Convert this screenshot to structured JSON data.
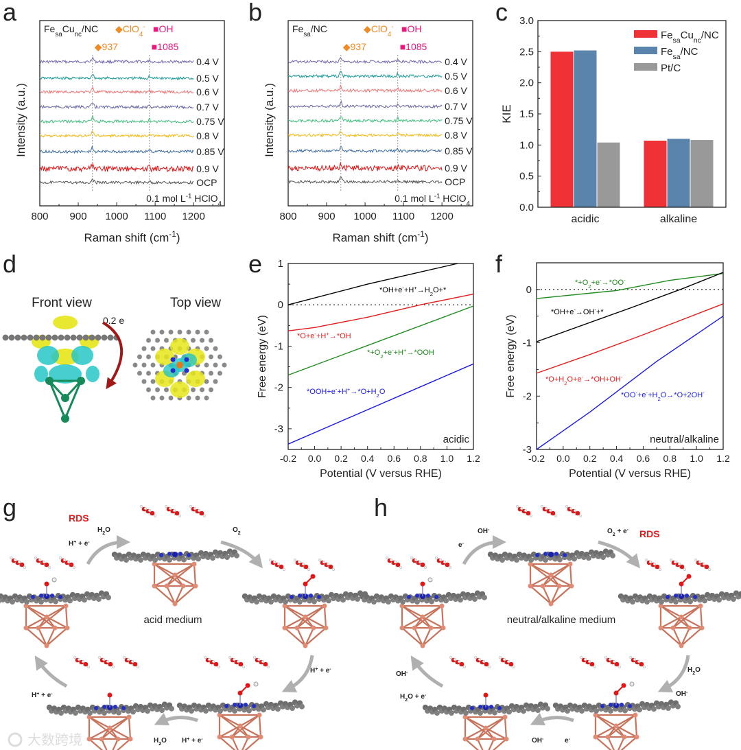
{
  "panel_labels": {
    "a": "a",
    "b": "b",
    "c": "c",
    "d": "d",
    "e": "e",
    "f": "f",
    "g": "g",
    "h": "h"
  },
  "chart_data": [
    {
      "panel": "a",
      "type": "line",
      "title": "Fe_{sa}Cu_{nc}/NC",
      "xlabel": "Raman shift (cm^{-1})",
      "ylabel": "Intensity (a.u.)",
      "xlim": [
        800,
        1280
      ],
      "xticks": [
        "800",
        "900",
        "1000",
        "1100",
        "1200"
      ],
      "legend": [
        {
          "label": "◆ClO_{4}^{-}",
          "color": "#f08a24"
        },
        {
          "label": "■OH",
          "color": "#e8187c"
        }
      ],
      "peaks": [
        {
          "x": 937,
          "label": "◆937",
          "color": "#f08a24"
        },
        {
          "x": 1085,
          "label": "■1085",
          "color": "#e8187c"
        }
      ],
      "note": "0.1 mol L^{-1} HClO_{4}",
      "series": [
        {
          "name": "0.4 V",
          "color": "#7466b4"
        },
        {
          "name": "0.5 V",
          "color": "#1c9a98"
        },
        {
          "name": "0.6 V",
          "color": "#f07474"
        },
        {
          "name": "0.7 V",
          "color": "#6a68a6"
        },
        {
          "name": "0.75 V",
          "color": "#3dbf7c"
        },
        {
          "name": "0.8 V",
          "color": "#f4b810"
        },
        {
          "name": "0.85 V",
          "color": "#3a6aa2"
        },
        {
          "name": "0.9 V",
          "color": "#e31414"
        },
        {
          "name": "OCP",
          "color": "#555555"
        }
      ]
    },
    {
      "panel": "b",
      "type": "line",
      "title": "Fe_{sa}/NC",
      "xlabel": "Raman shift (cm^{-1})",
      "ylabel": "Intensity (a.u.)",
      "xlim": [
        800,
        1280
      ],
      "xticks": [
        "800",
        "900",
        "1000",
        "1100",
        "1200"
      ],
      "legend": [
        {
          "label": "◆ClO_{4}^{-}",
          "color": "#f08a24"
        },
        {
          "label": "■OH",
          "color": "#e8187c"
        }
      ],
      "peaks": [
        {
          "x": 937,
          "label": "◆937",
          "color": "#f08a24"
        },
        {
          "x": 1085,
          "label": "■1085",
          "color": "#e8187c"
        }
      ],
      "note": "0.1 mol L^{-1} HClO_{4}",
      "series": [
        {
          "name": "0.4 V",
          "color": "#7466b4"
        },
        {
          "name": "0.5 V",
          "color": "#1c9a98"
        },
        {
          "name": "0.6 V",
          "color": "#f07474"
        },
        {
          "name": "0.7 V",
          "color": "#6a68a6"
        },
        {
          "name": "0.75 V",
          "color": "#3dbf7c"
        },
        {
          "name": "0.8 V",
          "color": "#f4b810"
        },
        {
          "name": "0.85 V",
          "color": "#3a6aa2"
        },
        {
          "name": "0.9 V",
          "color": "#e31414"
        },
        {
          "name": "OCP",
          "color": "#555555"
        }
      ]
    },
    {
      "panel": "c",
      "type": "bar",
      "ylabel": "KIE",
      "ylim": [
        0,
        3.0
      ],
      "yticks": [
        "0.0",
        "0.5",
        "1.0",
        "1.5",
        "2.0",
        "2.5",
        "3.0"
      ],
      "categories": [
        "acidic",
        "alkaline"
      ],
      "legend_position": "top-right",
      "series": [
        {
          "name": "Fe_{sa}Cu_{nc}/NC",
          "color": "#ee3235",
          "values": [
            2.5,
            1.07
          ]
        },
        {
          "name": "Fe_{sa}/NC",
          "color": "#5b84ad",
          "values": [
            2.52,
            1.1
          ]
        },
        {
          "name": "Pt/C",
          "color": "#999999",
          "values": [
            1.04,
            1.08
          ]
        }
      ]
    },
    {
      "panel": "e",
      "type": "line",
      "xlabel": "Potential (V versus RHE)",
      "ylabel": "Free energy (eV)",
      "xlim": [
        -0.2,
        1.2
      ],
      "ylim": [
        -3.5,
        1
      ],
      "xticks": [
        "-0.2",
        "0.0",
        "0.2",
        "0.4",
        "0.6",
        "0.8",
        "1.0",
        "1.2"
      ],
      "yticks": [
        "1",
        "0",
        "-1",
        "-2",
        "-3"
      ],
      "condition": "acidic",
      "series": [
        {
          "name": "*OH+e^{-}+H^{+}→H_{2}O+*",
          "color": "#000000",
          "x": [
            -0.2,
            0.4,
            1.08
          ],
          "y": [
            0.0,
            0.5,
            1.0
          ]
        },
        {
          "name": "*O+e^{-}+H^{+}→*OH",
          "color": "#e51c1c",
          "x": [
            -0.2,
            0.0,
            0.4,
            0.8,
            1.2
          ],
          "y": [
            -0.63,
            -0.55,
            -0.3,
            0.0,
            0.26
          ]
        },
        {
          "name": "*+O_{2}+e^{-}+H^{+}→*OOH",
          "color": "#1e8c1e",
          "x": [
            -0.2,
            1.2
          ],
          "y": [
            -1.7,
            -0.03
          ]
        },
        {
          "name": "*OOH+e^{-}+H^{+}→*O+H_{2}O",
          "color": "#1a1ae6",
          "x": [
            -0.2,
            1.2
          ],
          "y": [
            -3.37,
            -1.43
          ]
        }
      ]
    },
    {
      "panel": "f",
      "type": "line",
      "xlabel": "Potential (V versus RHE)",
      "ylabel": "Free energy (eV)",
      "xlim": [
        -0.2,
        1.2
      ],
      "ylim": [
        -3,
        0.5
      ],
      "xticks": [
        "-0.2",
        "0.0",
        "0.2",
        "0.4",
        "0.6",
        "0.8",
        "1.0",
        "1.2"
      ],
      "yticks": [
        "0",
        "-1",
        "-2",
        "-3"
      ],
      "condition": "neutral/alkaline",
      "series": [
        {
          "name": "*+O_{2}+e^{-}→*OO^{-}",
          "color": "#1e8c1e",
          "x": [
            -0.2,
            0.4,
            0.8,
            1.2
          ],
          "y": [
            -0.17,
            -0.02,
            0.17,
            0.3
          ]
        },
        {
          "name": "*OH+e^{-}→OH^{-}+*",
          "color": "#000000",
          "x": [
            -0.2,
            0.5,
            0.9,
            1.2
          ],
          "y": [
            -0.98,
            -0.35,
            0.02,
            0.32
          ]
        },
        {
          "name": "*O+H_{2}O+e^{-}→*OH+OH^{-}",
          "color": "#e51c1c",
          "x": [
            -0.2,
            0.2,
            0.6,
            1.2
          ],
          "y": [
            -1.57,
            -1.22,
            -0.85,
            -0.27
          ]
        },
        {
          "name": "*OO^{-}+e^{-}+H_{2}O→*O+2OH^{-}",
          "color": "#1a1ae6",
          "x": [
            -0.2,
            0.2,
            0.7,
            1.2
          ],
          "y": [
            -3.0,
            -2.3,
            -1.35,
            -0.5
          ]
        }
      ]
    }
  ],
  "panel_d": {
    "front_view": "Front view",
    "top_view": "Top view",
    "charge": "0.2 e"
  },
  "panel_g": {
    "medium": "acid medium",
    "rds": "RDS",
    "steps": [
      "H_{2}O",
      "H^{+} + e^{-}",
      "O_{2}",
      "H^{+} + e^{-}",
      "H_{2}O",
      "H^{+} + e^{-}",
      "H^{+} + e^{-}"
    ]
  },
  "panel_h": {
    "medium": "neutral/alkaline medium",
    "rds": "RDS",
    "steps": [
      "OH^{-}",
      "e^{-}",
      "O_{2} + e^{-}",
      "H_{2}O",
      "OH^{-}",
      "OH^{-}",
      "e^{-}",
      "OH^{-}",
      "H_{2}O + e^{-}"
    ]
  },
  "watermark": "大数跨境",
  "colors": {
    "axis": "#222222",
    "arrow": "#b0b0b0",
    "copper": "#e08c74",
    "carbon": "#6e6e6e",
    "nitrogen": "#2430c8",
    "oxygen": "#e01818"
  }
}
